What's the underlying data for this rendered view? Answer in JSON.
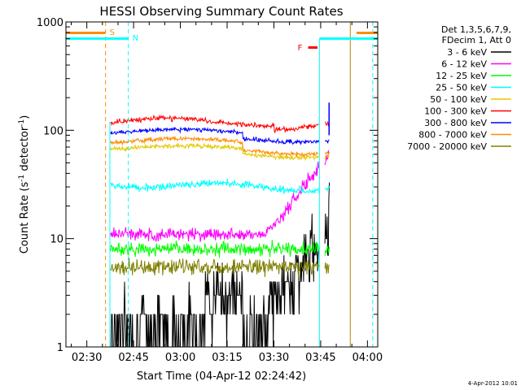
{
  "chart_data": {
    "type": "line",
    "title": "HESSI Observing Summary Count Rates",
    "xlabel": "Start Time (04-Apr-12 02:24:42)",
    "ylabel_main": "Count Rate (s",
    "ylabel_sup1": "-1",
    "ylabel_mid": " detector",
    "ylabel_sup2": "-1",
    "ylabel_end": ")",
    "y_scale": "log",
    "ylim": [
      1,
      1000
    ],
    "xlim": [
      "02:23",
      "04:03"
    ],
    "x_tick_labels": [
      "02:30",
      "02:45",
      "03:00",
      "03:15",
      "03:30",
      "03:45",
      "04:00"
    ],
    "x_tick_minutes": [
      30,
      45,
      60,
      75,
      90,
      105,
      120
    ],
    "y_tick_labels": [
      "1",
      "10",
      "100",
      "1000"
    ],
    "y_tick_values": [
      1,
      10,
      100,
      1000
    ],
    "legend_header": [
      "Det 1,3,5,6,7,9,",
      "FDecim 1, Att 0"
    ],
    "legend_position": "right",
    "series": [
      {
        "name": "3 - 6 keV",
        "color": "#000000"
      },
      {
        "name": "6 - 12 keV",
        "color": "#ff00ff"
      },
      {
        "name": "12 - 25 keV",
        "color": "#00ff00"
      },
      {
        "name": "25 - 50 keV",
        "color": "#00ffff"
      },
      {
        "name": "50 - 100 keV",
        "color": "#e6c800"
      },
      {
        "name": "100 - 300 keV",
        "color": "#ff0000"
      },
      {
        "name": "300 - 800 keV",
        "color": "#0000ff"
      },
      {
        "name": "800 - 7000 keV",
        "color": "#ff8c00"
      },
      {
        "name": "7000 - 20000 keV",
        "color": "#808000"
      }
    ],
    "annotations": {
      "saa_label": "S",
      "night_label": "N",
      "flare_label": "F"
    },
    "timestamp": "4-Apr-2012 10:01"
  }
}
